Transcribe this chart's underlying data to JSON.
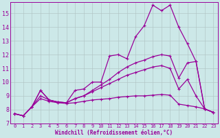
{
  "bg_color": "#cce8e8",
  "line_color": "#990099",
  "grid_color": "#b0c4c4",
  "xlabel": "Windchill (Refroidissement éolien,°C)",
  "ylim": [
    7,
    15.8
  ],
  "xlim": [
    -0.5,
    23.5
  ],
  "yticks": [
    7,
    8,
    9,
    10,
    11,
    12,
    13,
    14,
    15
  ],
  "xticks": [
    0,
    1,
    2,
    3,
    4,
    5,
    6,
    7,
    8,
    9,
    10,
    11,
    12,
    13,
    14,
    15,
    16,
    17,
    18,
    19,
    20,
    21,
    22,
    23
  ],
  "series": [
    [
      7.7,
      7.55,
      8.2,
      9.4,
      8.7,
      8.55,
      8.5,
      9.4,
      9.5,
      10.0,
      10.0,
      11.9,
      12.0,
      11.7,
      13.3,
      14.1,
      15.6,
      15.2,
      15.6,
      14.0,
      12.8,
      11.5,
      8.05,
      7.8
    ],
    [
      7.7,
      7.55,
      8.2,
      9.4,
      8.7,
      8.55,
      8.5,
      8.8,
      9.0,
      9.4,
      9.8,
      10.2,
      10.7,
      11.1,
      11.4,
      11.6,
      11.85,
      12.0,
      11.9,
      10.3,
      11.4,
      11.5,
      8.05,
      7.8
    ],
    [
      7.7,
      7.55,
      8.2,
      9.0,
      8.7,
      8.55,
      8.5,
      8.8,
      9.0,
      9.3,
      9.6,
      9.9,
      10.2,
      10.5,
      10.7,
      10.9,
      11.1,
      11.2,
      11.0,
      9.5,
      10.2,
      9.0,
      8.05,
      7.8
    ],
    [
      7.7,
      7.55,
      8.2,
      8.8,
      8.6,
      8.5,
      8.45,
      8.5,
      8.6,
      8.7,
      8.75,
      8.8,
      8.9,
      8.95,
      9.0,
      9.0,
      9.05,
      9.1,
      9.05,
      8.4,
      8.3,
      8.2,
      8.05,
      7.8
    ]
  ],
  "xlabel_fontsize": 5.5,
  "tick_fontsize": 5.0,
  "ylabel_fontsize": 6.0,
  "marker": "+",
  "markersize": 3.5,
  "linewidth": 0.9
}
